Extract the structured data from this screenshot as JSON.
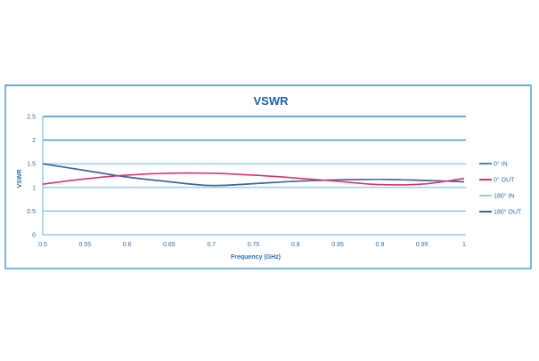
{
  "chart_data": {
    "type": "line",
    "title": "VSWR",
    "xlabel": "Frequency (GHz)",
    "ylabel": "VSWR",
    "xlim": [
      0.5,
      1.0
    ],
    "ylim": [
      0,
      2.5
    ],
    "x_ticks": [
      "0.5",
      "0.55",
      "0.6",
      "0.65",
      "0.7",
      "0.75",
      "0.8",
      "0.85",
      "0.9",
      "0.95",
      "1"
    ],
    "y_ticks": [
      "0",
      "0.5",
      "1",
      "1.5",
      "2",
      "2.5"
    ],
    "grid": true,
    "legend_position": "right",
    "x": [
      0.5,
      0.55,
      0.6,
      0.65,
      0.7,
      0.75,
      0.8,
      0.85,
      0.9,
      0.95,
      1.0
    ],
    "series": [
      {
        "name": "0° IN",
        "color": "#2f8fc9",
        "values": [
          1.5,
          1.36,
          1.22,
          1.12,
          1.04,
          1.08,
          1.13,
          1.16,
          1.17,
          1.15,
          1.12
        ]
      },
      {
        "name": "0° OUT",
        "color": "#d8336a",
        "values": [
          1.07,
          1.18,
          1.26,
          1.3,
          1.3,
          1.26,
          1.2,
          1.13,
          1.06,
          1.07,
          1.19
        ]
      },
      {
        "name": "180° IN",
        "color": "#a8cfa0",
        "values": [
          1.5,
          1.36,
          1.22,
          1.12,
          1.04,
          1.08,
          1.13,
          1.16,
          1.17,
          1.15,
          1.12
        ]
      },
      {
        "name": "180° OUT",
        "color": "#4a5fa8",
        "values": [
          1.5,
          1.36,
          1.22,
          1.12,
          1.04,
          1.08,
          1.13,
          1.16,
          1.17,
          1.15,
          1.12
        ]
      }
    ]
  },
  "style": {
    "title_color": "#1f5fa8",
    "axis_text_color": "#2a6fb0",
    "grid_color": "#7cc0e4",
    "grid_top_color": "#3c8fc8"
  }
}
